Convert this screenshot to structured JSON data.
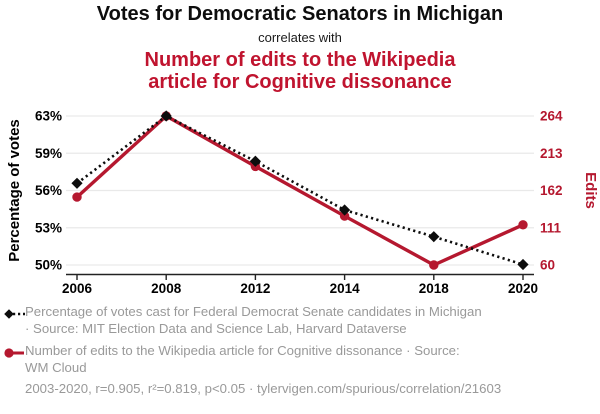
{
  "header": {
    "title": "Votes for Democratic Senators in Michigan",
    "connector": "correlates with",
    "subtitle_line1": "Number of edits to the Wikipedia",
    "subtitle_line2": "article for Cognitive dissonance"
  },
  "chart_data": {
    "type": "line",
    "x": [
      2006,
      2008,
      2012,
      2014,
      2018,
      2020
    ],
    "series": [
      {
        "name": "Percentage of votes cast for Federal Democrat Senate candidates in Michigan",
        "axis": "left",
        "style": "black-dotted-diamond",
        "values": [
          56.9,
          62.7,
          58.8,
          54.6,
          52.3,
          49.9
        ]
      },
      {
        "name": "Number of edits to the Wikipedia article for Cognitive dissonance",
        "axis": "right",
        "style": "red-solid-circle",
        "values": [
          153,
          264,
          195,
          127,
          60,
          115
        ]
      }
    ],
    "left_axis": {
      "label": "Percentage of votes",
      "tick_labels": [
        "63%",
        "59%",
        "56%",
        "53%",
        "50%"
      ],
      "range": [
        49.86,
        62.7
      ]
    },
    "right_axis": {
      "label": "Edits",
      "tick_labels": [
        "264",
        "213",
        "162",
        "111",
        "60"
      ],
      "range": [
        60,
        264
      ]
    },
    "grid": "horizontal",
    "legend_position": "bottom"
  },
  "legend": {
    "items": [
      {
        "marker": "black-diamond-dotted-line",
        "line1": "Percentage of votes cast for Federal Democrat Senate candidates in Michigan",
        "line2": "· Source: MIT Election Data and Science Lab, Harvard Dataverse"
      },
      {
        "marker": "red-circle-solid-line",
        "line1": "Number of edits to the Wikipedia article for Cognitive dissonance · Source:",
        "line2": "WM Cloud"
      }
    ]
  },
  "footer": {
    "stats": "2003-2020, r=0.905, r²=0.819, p<0.05 · tylervigen.com/spurious/correlation/21603"
  },
  "colors": {
    "title_red": "#c0142f",
    "line_red": "#b5182f",
    "axis_black": "#0d0d0d",
    "gray_text": "#999999",
    "gridline": "#e9e9e9"
  }
}
